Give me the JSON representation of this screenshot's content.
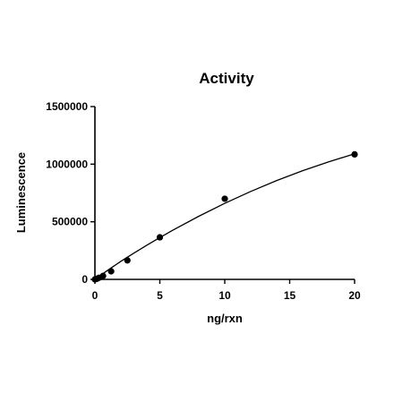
{
  "chart_data": {
    "type": "scatter",
    "title": "Activity",
    "xlabel": "ng/rxn",
    "ylabel": "Luminescence",
    "xlim": [
      0,
      20
    ],
    "ylim": [
      0,
      1500000
    ],
    "x_ticks": [
      0,
      5,
      10,
      15,
      20
    ],
    "y_ticks": [
      0,
      500000,
      1000000,
      1500000
    ],
    "x_tick_labels": [
      "0",
      "5",
      "10",
      "15",
      "20"
    ],
    "y_tick_labels": [
      "0",
      "500000",
      "1000000",
      "1500000"
    ],
    "grid": false,
    "legend": "none",
    "series": [
      {
        "x": [
          0,
          0.156,
          0.3125,
          0.625,
          1.25,
          2.5,
          5,
          10,
          20
        ],
        "y": [
          0,
          5000,
          14000,
          30000,
          70000,
          165000,
          365000,
          700000,
          1085000
        ]
      }
    ],
    "fit_curve": {
      "type": "saturating",
      "x": [
        0,
        1,
        2,
        3,
        4,
        5,
        6,
        8,
        10,
        12,
        14,
        16,
        18,
        20
      ],
      "y": [
        0,
        80000,
        157000,
        228000,
        297000,
        363000,
        427000,
        548000,
        660000,
        763000,
        858000,
        943000,
        1020000,
        1090000
      ]
    },
    "colors": {
      "marker": "#000000",
      "line": "#000000",
      "axis": "#000000"
    }
  }
}
